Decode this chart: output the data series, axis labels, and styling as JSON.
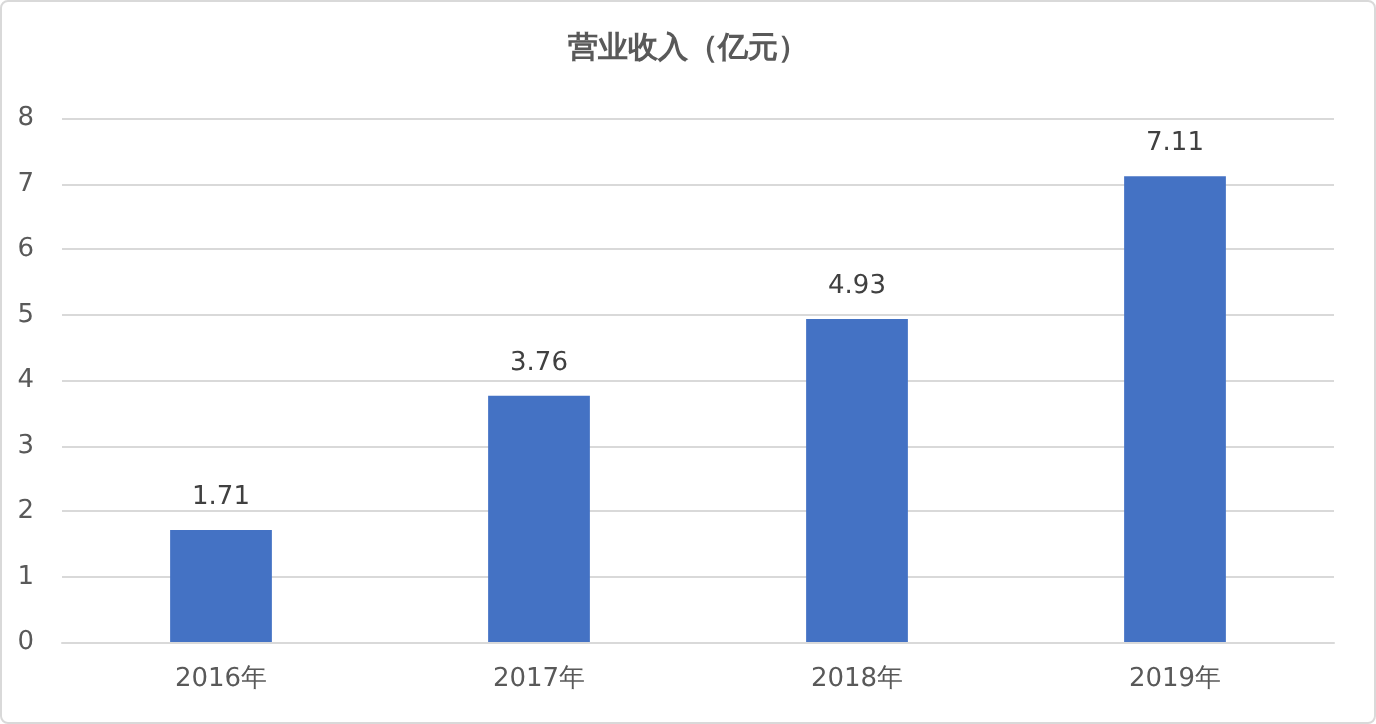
{
  "chart_data": {
    "type": "bar",
    "title": "营业收入（亿元）",
    "categories": [
      "2016年",
      "2017年",
      "2018年",
      "2019年"
    ],
    "values": [
      1.71,
      3.76,
      4.93,
      7.11
    ],
    "color": "#4472c4",
    "ylim": [
      0,
      8
    ],
    "yticks": [
      0,
      1,
      2,
      3,
      4,
      5,
      6,
      7,
      8
    ],
    "grid": "y",
    "data_labels": true
  }
}
